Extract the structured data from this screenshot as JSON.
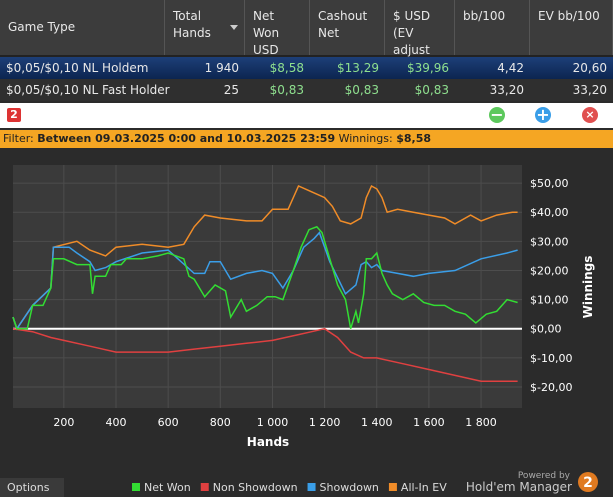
{
  "table": {
    "columns": [
      "Game Type",
      "Total Hands",
      "Net Won USD",
      "Cashout Net",
      "$ USD (EV adjust",
      "bb/100",
      "EV bb/100"
    ],
    "rows": [
      [
        "$0,05/$0,10 NL Holdem",
        "1 940",
        "$8,58",
        "$13,29",
        "$39,96",
        "4,42",
        "20,60"
      ],
      [
        "$0,05/$0,10 NL Fast Holder",
        "25",
        "$0,83",
        "$0,83",
        "$0,83",
        "33,20",
        "33,20"
      ]
    ]
  },
  "filter": {
    "label": "Filter:",
    "text": "Between 09.03.2025 0:00 and 10.03.2025 23:59",
    "winnings_label": "Winnings:",
    "winnings": "$8,58"
  },
  "footer": {
    "options": "Options",
    "powered_by": "Powered by",
    "brand": "Hold'em Manager",
    "logo": "2"
  },
  "chart_data": {
    "type": "line",
    "xlabel": "Hands",
    "ylabel": "Winnings",
    "xlim": [
      5,
      1957
    ],
    "ylim": [
      -27.2,
      56.2
    ],
    "xticks": [
      200,
      400,
      600,
      800,
      {
        "value": 1000,
        "label": "1 000"
      },
      {
        "value": 1200,
        "label": "1 200"
      },
      {
        "value": 1400,
        "label": "1 400"
      },
      {
        "value": 1600,
        "label": "1 600"
      },
      {
        "value": 1800,
        "label": "1 800"
      }
    ],
    "yticks": [
      {
        "value": 50,
        "label": "$50,00"
      },
      {
        "value": 40,
        "label": "$40,00"
      },
      {
        "value": 30,
        "label": "$30,00"
      },
      {
        "value": 20,
        "label": "$20,00"
      },
      {
        "value": 10,
        "label": "$10,00"
      },
      {
        "value": 0,
        "label": "$0,00"
      },
      {
        "value": -10,
        "label": "$-10,00"
      },
      {
        "value": -20,
        "label": "$-20,00"
      }
    ],
    "grid": true,
    "series": [
      {
        "name": "Net Won",
        "color": "#33dd33",
        "x": [
          5,
          20,
          60,
          80,
          120,
          150,
          160,
          200,
          250,
          300,
          310,
          320,
          360,
          380,
          420,
          440,
          500,
          560,
          600,
          660,
          680,
          700,
          740,
          780,
          820,
          840,
          880,
          900,
          940,
          980,
          1010,
          1040,
          1080,
          1110,
          1140,
          1170,
          1190,
          1220,
          1250,
          1280,
          1300,
          1320,
          1330,
          1350,
          1360,
          1380,
          1400,
          1420,
          1440,
          1460,
          1500,
          1540,
          1580,
          1620,
          1660,
          1700,
          1740,
          1780,
          1820,
          1860,
          1900,
          1940
        ],
        "values": [
          4,
          0,
          0,
          8,
          8,
          14,
          24,
          24,
          22,
          22,
          12,
          18,
          18,
          22,
          22,
          24,
          24,
          25,
          26,
          24,
          18,
          17,
          11,
          15,
          13,
          4,
          10,
          6,
          8,
          11,
          11,
          10,
          20,
          28,
          34,
          35,
          33,
          24,
          15,
          10,
          0,
          6,
          2,
          12,
          24,
          24,
          26,
          19,
          15,
          12,
          10,
          12,
          9,
          8,
          8,
          6,
          5,
          2,
          5,
          6,
          10,
          9
        ]
      },
      {
        "name": "Non Showdown",
        "color": "#e04040",
        "x": [
          5,
          80,
          150,
          200,
          300,
          400,
          500,
          600,
          700,
          800,
          900,
          1000,
          1100,
          1150,
          1200,
          1250,
          1300,
          1350,
          1400,
          1500,
          1600,
          1700,
          1800,
          1900,
          1940
        ],
        "values": [
          0,
          -1,
          -3,
          -4,
          -6,
          -8,
          -8,
          -8,
          -7,
          -6,
          -5,
          -4,
          -2,
          -1,
          0,
          -3,
          -8,
          -10,
          -10,
          -12,
          -14,
          -16,
          -18,
          -18,
          -18
        ]
      },
      {
        "name": "Showdown",
        "color": "#3a9ee8",
        "x": [
          5,
          20,
          80,
          150,
          160,
          220,
          250,
          300,
          320,
          360,
          400,
          500,
          600,
          700,
          740,
          760,
          800,
          840,
          900,
          960,
          1000,
          1040,
          1080,
          1120,
          1160,
          1180,
          1220,
          1280,
          1320,
          1340,
          1360,
          1380,
          1400,
          1420,
          1480,
          1540,
          1600,
          1700,
          1800,
          1900,
          1940
        ],
        "values": [
          4,
          0,
          8,
          14,
          28,
          28,
          26,
          23,
          20,
          21,
          23,
          26,
          27,
          19,
          19,
          23,
          23,
          17,
          19,
          20,
          19,
          14,
          20,
          28,
          31,
          33,
          23,
          12,
          15,
          22,
          23,
          21,
          22,
          20,
          19,
          18,
          19,
          20,
          24,
          26,
          27
        ]
      },
      {
        "name": "All-In EV",
        "color": "#f08c28",
        "x": [
          5,
          20,
          80,
          150,
          160,
          250,
          300,
          360,
          400,
          500,
          600,
          660,
          700,
          740,
          800,
          900,
          960,
          1000,
          1060,
          1100,
          1150,
          1200,
          1230,
          1260,
          1300,
          1340,
          1360,
          1380,
          1400,
          1420,
          1440,
          1480,
          1540,
          1600,
          1660,
          1700,
          1760,
          1800,
          1860,
          1920,
          1940
        ],
        "values": [
          4,
          0,
          8,
          14,
          28,
          30,
          27,
          25,
          28,
          29,
          28,
          29,
          35,
          39,
          38,
          37,
          37,
          41,
          41,
          49,
          47,
          45,
          42,
          37,
          36,
          38,
          45,
          49,
          48,
          45,
          40,
          41,
          40,
          39,
          38,
          36,
          39,
          37,
          39,
          40,
          40
        ]
      }
    ]
  }
}
